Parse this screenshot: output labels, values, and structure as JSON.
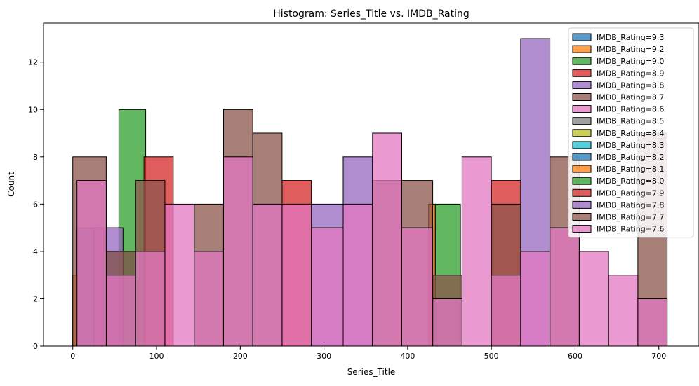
{
  "chart_data": {
    "type": "histogram",
    "title": "Histogram: Series_Title vs. IMDB_Rating",
    "xlabel": "Series_Title",
    "ylabel": "Count",
    "xlim": [
      -35,
      748
    ],
    "ylim": [
      0,
      13.65
    ],
    "xticks": [
      0,
      100,
      200,
      300,
      400,
      500,
      600,
      700
    ],
    "yticks": [
      0,
      2,
      4,
      6,
      8,
      10,
      12
    ],
    "legend_position": "top-right",
    "series": [
      {
        "name": "IMDB_Rating=9.3",
        "color": "#1f77b4",
        "bins": [
          [
            5,
            37,
            5
          ],
          [
            40,
            72,
            4
          ]
        ]
      },
      {
        "name": "IMDB_Rating=9.2",
        "color": "#ff7f0e",
        "bins": [
          [
            0,
            5,
            3
          ],
          [
            425,
            433,
            6
          ]
        ]
      },
      {
        "name": "IMDB_Rating=9.0",
        "color": "#2ca02c",
        "bins": [
          [
            55,
            87,
            10
          ],
          [
            433,
            463,
            6
          ]
        ]
      },
      {
        "name": "IMDB_Rating=8.9",
        "color": "#d62728",
        "bins": [
          [
            85,
            120,
            8
          ],
          [
            250,
            285,
            7
          ],
          [
            500,
            535,
            7
          ]
        ]
      },
      {
        "name": "IMDB_Rating=8.8",
        "color": "#9467bd",
        "bins": [
          [
            25,
            60,
            5
          ],
          [
            285,
            323,
            6
          ],
          [
            323,
            358,
            8
          ],
          [
            535,
            570,
            13
          ]
        ]
      },
      {
        "name": "IMDB_Rating=8.7",
        "color": "#8c564b",
        "bins": [
          [
            0,
            40,
            8
          ],
          [
            40,
            75,
            4
          ],
          [
            75,
            110,
            7
          ],
          [
            145,
            180,
            6
          ],
          [
            180,
            215,
            10
          ],
          [
            215,
            250,
            9
          ],
          [
            358,
            393,
            7
          ],
          [
            393,
            430,
            7
          ],
          [
            430,
            465,
            3
          ],
          [
            500,
            535,
            6
          ],
          [
            570,
            605,
            8
          ],
          [
            675,
            710,
            9
          ]
        ]
      },
      {
        "name": "IMDB_Rating=8.6",
        "color": "#e377c2",
        "bins": [
          [
            5,
            40,
            7
          ],
          [
            40,
            75,
            3
          ],
          [
            75,
            110,
            4
          ],
          [
            110,
            145,
            6
          ],
          [
            145,
            180,
            4
          ],
          [
            180,
            215,
            8
          ],
          [
            215,
            250,
            6
          ],
          [
            250,
            285,
            6
          ],
          [
            285,
            323,
            5
          ],
          [
            323,
            358,
            6
          ],
          [
            358,
            393,
            9
          ],
          [
            393,
            430,
            5
          ],
          [
            430,
            465,
            2
          ],
          [
            465,
            500,
            8
          ],
          [
            500,
            535,
            3
          ],
          [
            535,
            570,
            4
          ],
          [
            570,
            605,
            5
          ],
          [
            605,
            640,
            4
          ],
          [
            640,
            675,
            3
          ],
          [
            675,
            710,
            2
          ]
        ]
      },
      {
        "name": "IMDB_Rating=8.5",
        "color": "#7f7f7f",
        "bins": []
      },
      {
        "name": "IMDB_Rating=8.4",
        "color": "#bcbd22",
        "bins": []
      },
      {
        "name": "IMDB_Rating=8.3",
        "color": "#17becf",
        "bins": []
      },
      {
        "name": "IMDB_Rating=8.2",
        "color": "#1f77b4",
        "bins": []
      },
      {
        "name": "IMDB_Rating=8.1",
        "color": "#ff7f0e",
        "bins": []
      },
      {
        "name": "IMDB_Rating=8.0",
        "color": "#2ca02c",
        "bins": []
      },
      {
        "name": "IMDB_Rating=7.9",
        "color": "#d62728",
        "bins": []
      },
      {
        "name": "IMDB_Rating=7.8",
        "color": "#9467bd",
        "bins": []
      },
      {
        "name": "IMDB_Rating=7.7",
        "color": "#8c564b",
        "bins": []
      },
      {
        "name": "IMDB_Rating=7.6",
        "color": "#e377c2",
        "bins": []
      }
    ]
  }
}
